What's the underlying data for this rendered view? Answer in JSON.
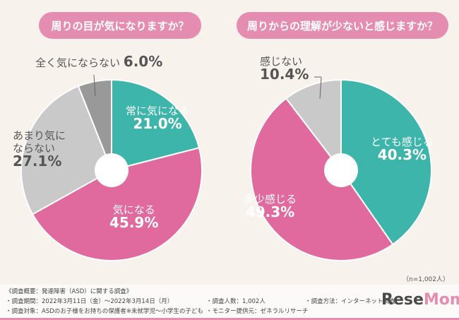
{
  "chart_data": [
    {
      "type": "pie",
      "title": "周りの目が気になりますか？",
      "slices": [
        {
          "label": "常に気になる",
          "value": 21.0,
          "color": "#3db5aa"
        },
        {
          "label": "気になる",
          "value": 45.9,
          "color": "#e06a9e"
        },
        {
          "label": "あまり気にならない",
          "value": 27.1,
          "color": "#c9c9c9"
        },
        {
          "label": "全く気にならない",
          "value": 6.0,
          "color": "#999999"
        }
      ]
    },
    {
      "type": "pie",
      "title": "周りからの理解が少ないと感じますか？",
      "slices": [
        {
          "label": "とても感じる",
          "value": 40.3,
          "color": "#3db5aa"
        },
        {
          "label": "多少感じる",
          "value": 49.3,
          "color": "#e06a9e"
        },
        {
          "label": "感じない",
          "value": 10.4,
          "color": "#c9c9c9"
        }
      ]
    }
  ],
  "display": {
    "l": [
      "常に気になる",
      "21.0%",
      "気になる",
      "45.9%",
      "あまり気にならない",
      "27.1%",
      "全く気にならない",
      "6.0%"
    ],
    "r": [
      "とても感じる",
      "40.3%",
      "多少感じる",
      "49.3%",
      "感じない",
      "10.4%"
    ]
  },
  "n": "（n=1,002人）",
  "footer": {
    "title": "《調査概要：発達障害（ASD）に関する調査》",
    "period": "・調査期間：2022年3月11日（金）～2022年3月14日（月）",
    "target": "・調査対象：ASDのお子様をお持ちの保護者※未就学児～小学生の子ども",
    "count": "・調査人数：1,002人",
    "provider": "・モニター提供元：ゼネラルリサーチ",
    "method": "・調査方法：インターネット調査"
  },
  "logo": "ReseMom"
}
